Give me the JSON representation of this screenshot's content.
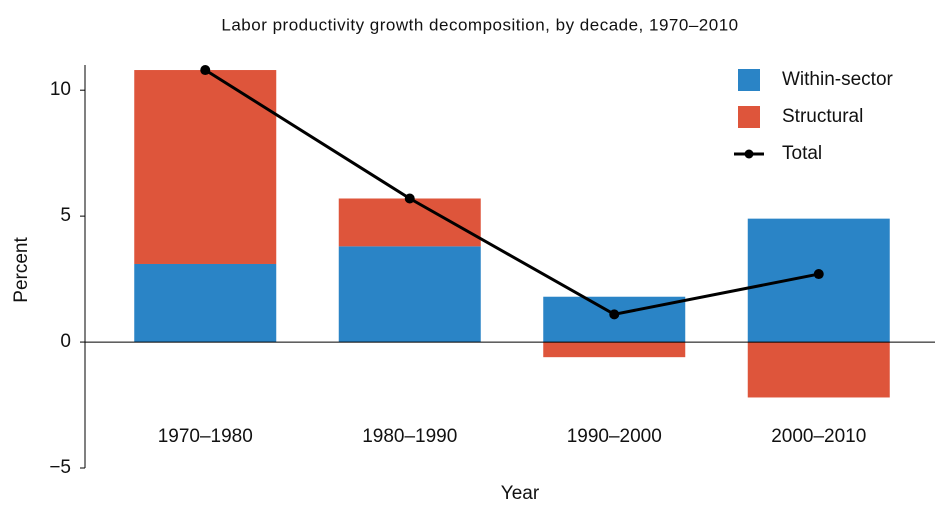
{
  "chart_data": {
    "type": "bar",
    "title": "Labor productivity growth decomposition, by decade, 1970–2010",
    "x_label": "Year",
    "y_label": "Percent",
    "categories": [
      "1970–1980",
      "1980–1990",
      "1990–2000",
      "2000–2010"
    ],
    "series": [
      {
        "name": "Within-sector",
        "color": "#2a84c6",
        "values": [
          3.1,
          3.8,
          1.8,
          4.9
        ]
      },
      {
        "name": "Structural",
        "color": "#de553b",
        "values": [
          7.7,
          1.9,
          -0.6,
          -2.2
        ]
      },
      {
        "name": "Total",
        "color": "#000000",
        "type": "line",
        "values": [
          10.8,
          5.7,
          1.1,
          2.7
        ]
      }
    ],
    "ylim": [
      -5,
      11
    ],
    "yticks": [
      {
        "value": -5,
        "label": "−5"
      },
      0,
      5,
      10
    ],
    "legend": "upper right"
  }
}
